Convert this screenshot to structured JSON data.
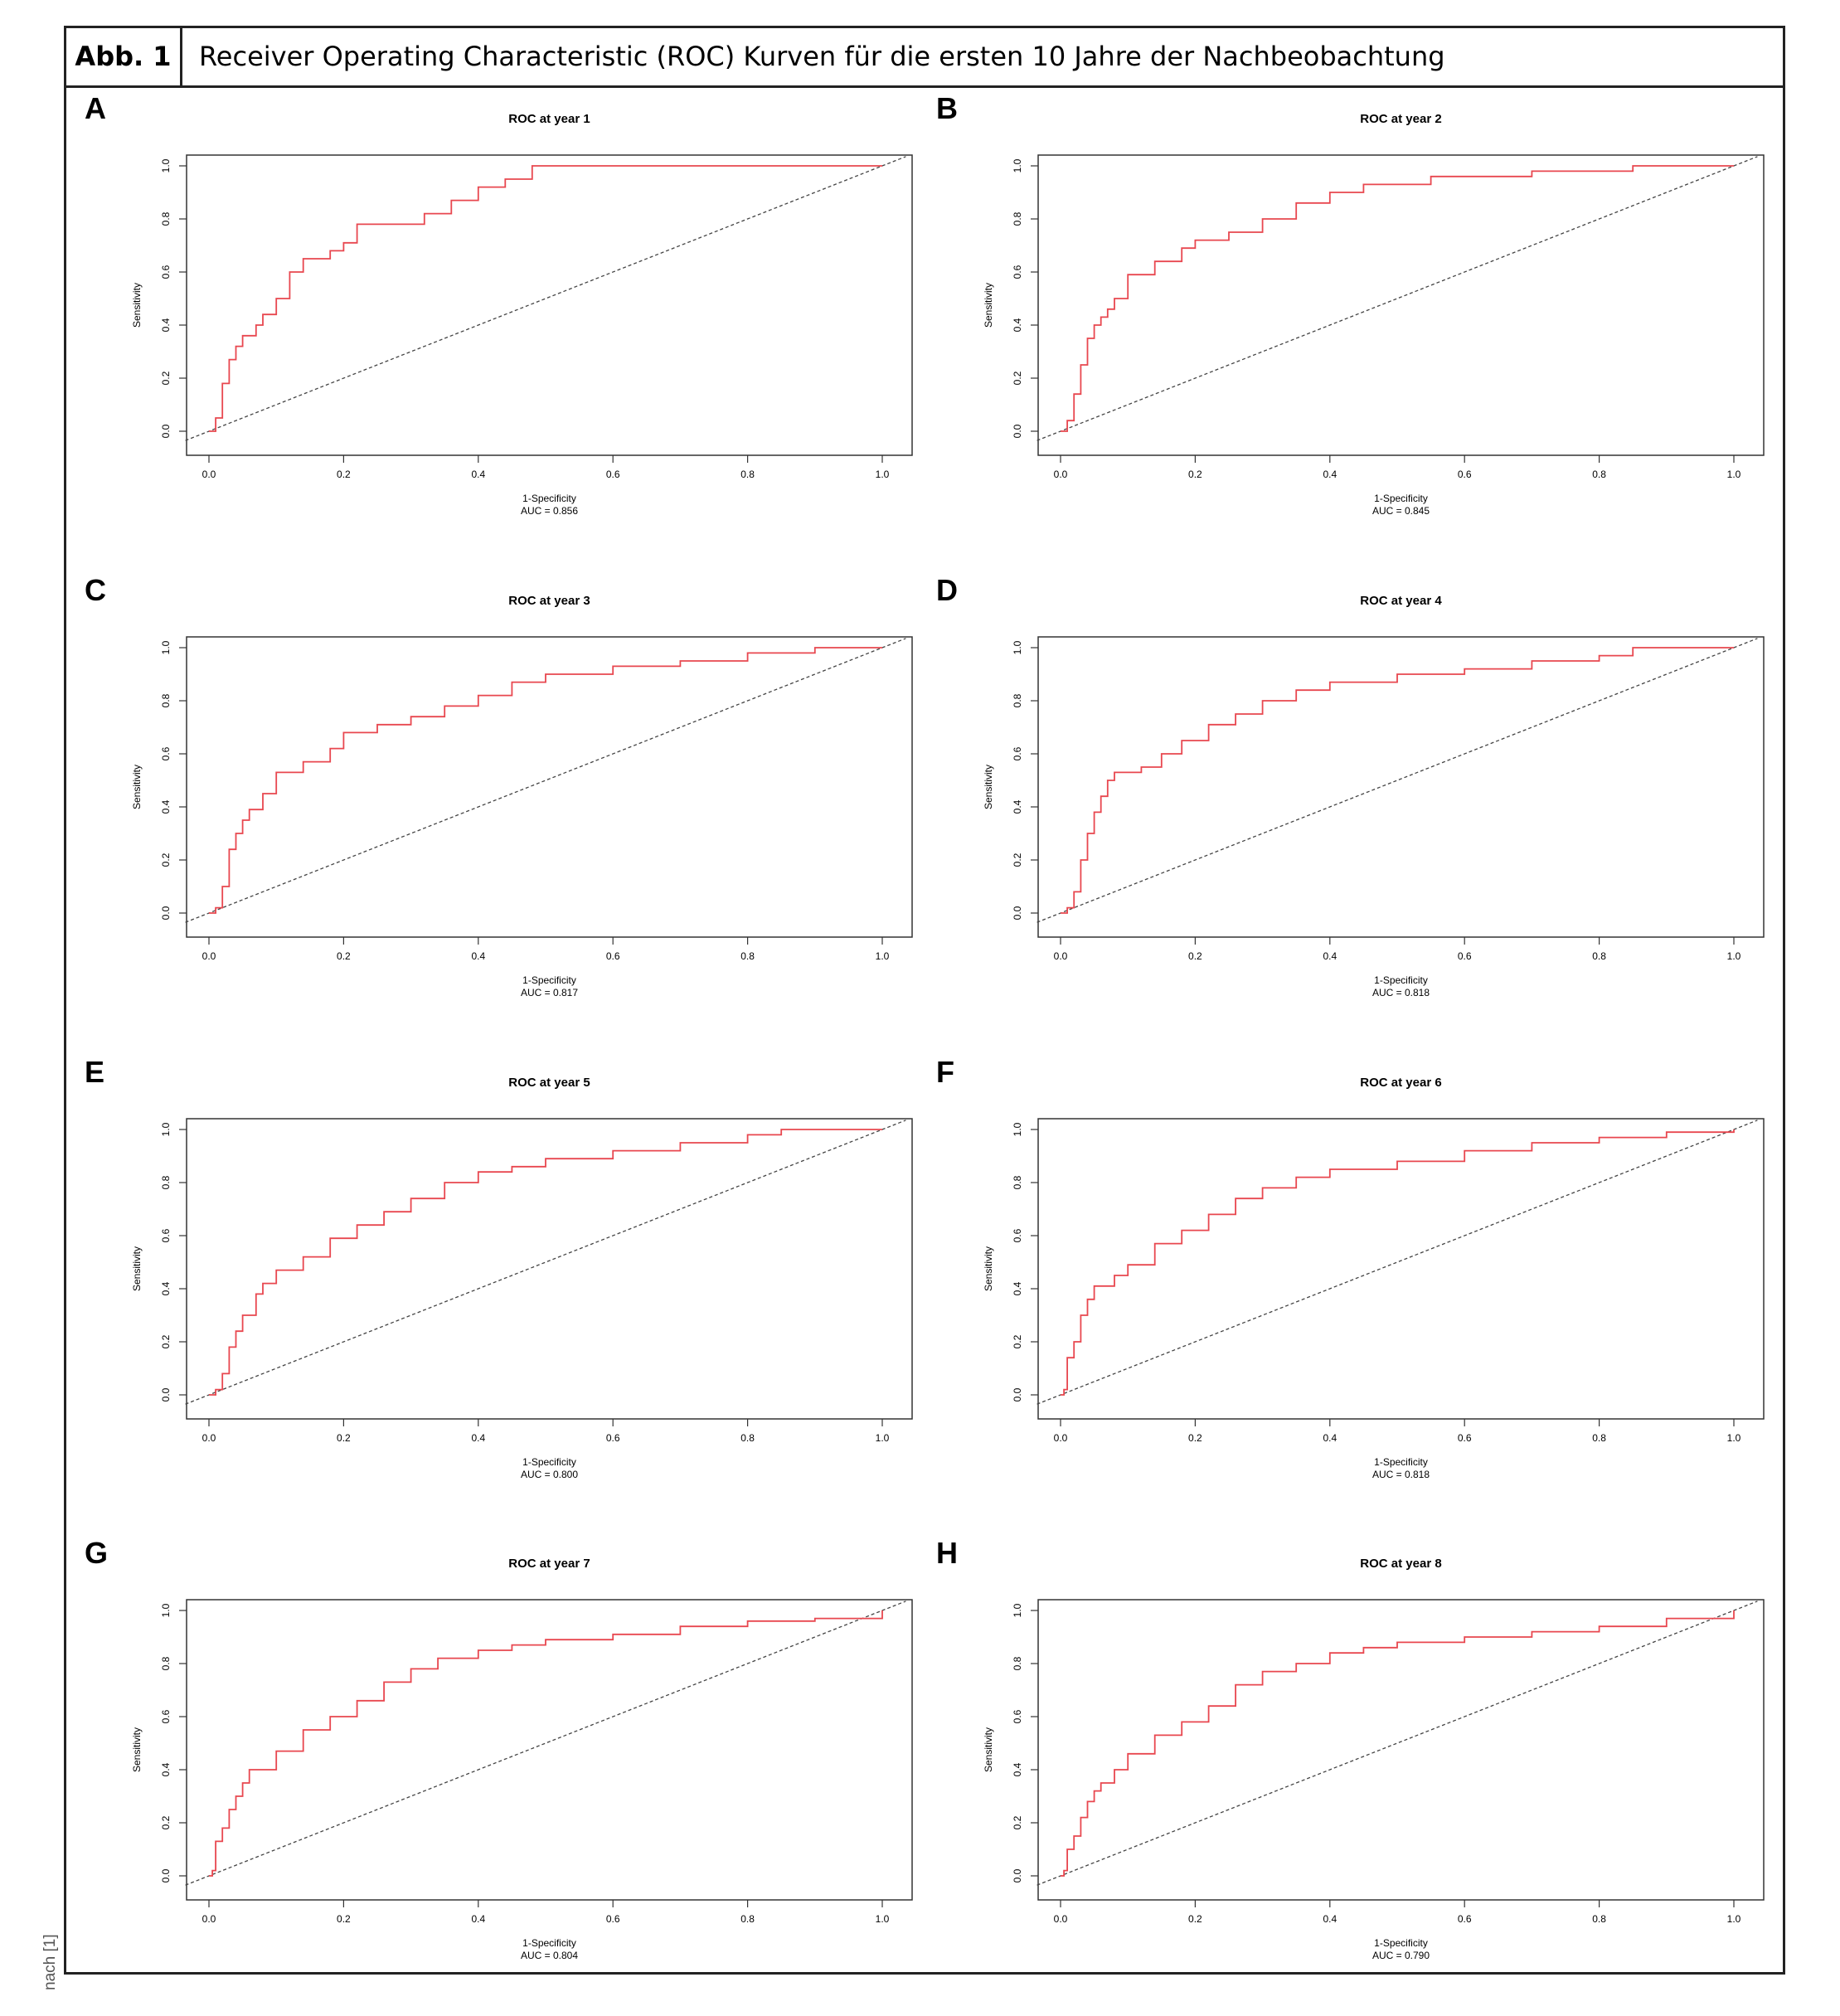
{
  "header": {
    "label": "Abb. 1",
    "title": "Receiver Operating Characteristic (ROC) Kurven für die ersten 10 Jahre der Nachbeobachtung"
  },
  "source_note": "nach [1]",
  "colors": {
    "roc_curve": "#e8474f",
    "diagonal": "#444444",
    "frame": "#333333"
  },
  "chart_data": [
    {
      "panel": "A",
      "type": "line",
      "title": "ROC at year 1",
      "xlabel": "1-Specificity",
      "ylabel": "Sensitivity",
      "auc_label": "AUC = 0.856",
      "xlim": [
        0,
        1
      ],
      "ylim": [
        0,
        1
      ],
      "xticks": [
        "0.0",
        "0.2",
        "0.4",
        "0.6",
        "0.8",
        "1.0"
      ],
      "yticks": [
        "0.0",
        "0.2",
        "0.4",
        "0.6",
        "0.8",
        "1.0"
      ],
      "series": [
        {
          "name": "ROC",
          "x": [
            0,
            0.005,
            0.01,
            0.02,
            0.03,
            0.04,
            0.05,
            0.07,
            0.08,
            0.1,
            0.12,
            0.14,
            0.18,
            0.2,
            0.22,
            0.28,
            0.32,
            0.36,
            0.4,
            0.44,
            0.48,
            0.6,
            0.8,
            1.0
          ],
          "y": [
            0,
            0,
            0.05,
            0.18,
            0.27,
            0.32,
            0.36,
            0.4,
            0.44,
            0.5,
            0.6,
            0.65,
            0.68,
            0.71,
            0.78,
            0.78,
            0.82,
            0.87,
            0.92,
            0.95,
            1.0,
            1.0,
            1.0,
            1.0
          ]
        },
        {
          "name": "Reference",
          "x": [
            0,
            1
          ],
          "y": [
            0,
            1
          ]
        }
      ]
    },
    {
      "panel": "B",
      "type": "line",
      "title": "ROC at year 2",
      "xlabel": "1-Specificity",
      "ylabel": "Sensitivity",
      "auc_label": "AUC = 0.845",
      "xlim": [
        0,
        1
      ],
      "ylim": [
        0,
        1
      ],
      "xticks": [
        "0.0",
        "0.2",
        "0.4",
        "0.6",
        "0.8",
        "1.0"
      ],
      "yticks": [
        "0.0",
        "0.2",
        "0.4",
        "0.6",
        "0.8",
        "1.0"
      ],
      "series": [
        {
          "name": "ROC",
          "x": [
            0,
            0.005,
            0.01,
            0.02,
            0.03,
            0.04,
            0.05,
            0.06,
            0.07,
            0.08,
            0.1,
            0.14,
            0.18,
            0.2,
            0.25,
            0.3,
            0.35,
            0.4,
            0.45,
            0.55,
            0.7,
            0.85,
            1.0
          ],
          "y": [
            0,
            0,
            0.04,
            0.14,
            0.25,
            0.35,
            0.4,
            0.43,
            0.46,
            0.5,
            0.59,
            0.64,
            0.69,
            0.72,
            0.75,
            0.8,
            0.86,
            0.9,
            0.93,
            0.96,
            0.98,
            1.0,
            1.0
          ]
        },
        {
          "name": "Reference",
          "x": [
            0,
            1
          ],
          "y": [
            0,
            1
          ]
        }
      ]
    },
    {
      "panel": "C",
      "type": "line",
      "title": "ROC at year 3",
      "xlabel": "1-Specificity",
      "ylabel": "Sensitivity",
      "auc_label": "AUC = 0.817",
      "xlim": [
        0,
        1
      ],
      "ylim": [
        0,
        1
      ],
      "xticks": [
        "0.0",
        "0.2",
        "0.4",
        "0.6",
        "0.8",
        "1.0"
      ],
      "yticks": [
        "0.0",
        "0.2",
        "0.4",
        "0.6",
        "0.8",
        "1.0"
      ],
      "series": [
        {
          "name": "ROC",
          "x": [
            0,
            0.01,
            0.02,
            0.03,
            0.04,
            0.05,
            0.06,
            0.08,
            0.1,
            0.14,
            0.18,
            0.2,
            0.25,
            0.3,
            0.35,
            0.4,
            0.45,
            0.5,
            0.6,
            0.7,
            0.8,
            0.9,
            1.0
          ],
          "y": [
            0,
            0.02,
            0.1,
            0.24,
            0.3,
            0.35,
            0.39,
            0.45,
            0.53,
            0.57,
            0.62,
            0.68,
            0.71,
            0.74,
            0.78,
            0.82,
            0.87,
            0.9,
            0.93,
            0.95,
            0.98,
            1.0,
            1.0
          ]
        },
        {
          "name": "Reference",
          "x": [
            0,
            1
          ],
          "y": [
            0,
            1
          ]
        }
      ]
    },
    {
      "panel": "D",
      "type": "line",
      "title": "ROC at year 4",
      "xlabel": "1-Specificity",
      "ylabel": "Sensitivity",
      "auc_label": "AUC = 0.818",
      "xlim": [
        0,
        1
      ],
      "ylim": [
        0,
        1
      ],
      "xticks": [
        "0.0",
        "0.2",
        "0.4",
        "0.6",
        "0.8",
        "1.0"
      ],
      "yticks": [
        "0.0",
        "0.2",
        "0.4",
        "0.6",
        "0.8",
        "1.0"
      ],
      "series": [
        {
          "name": "ROC",
          "x": [
            0,
            0.01,
            0.02,
            0.03,
            0.04,
            0.05,
            0.06,
            0.07,
            0.08,
            0.12,
            0.15,
            0.18,
            0.22,
            0.26,
            0.3,
            0.35,
            0.4,
            0.5,
            0.6,
            0.7,
            0.8,
            0.85,
            1.0
          ],
          "y": [
            0,
            0.02,
            0.08,
            0.2,
            0.3,
            0.38,
            0.44,
            0.5,
            0.53,
            0.55,
            0.6,
            0.65,
            0.71,
            0.75,
            0.8,
            0.84,
            0.87,
            0.9,
            0.92,
            0.95,
            0.97,
            1.0,
            1.0
          ]
        },
        {
          "name": "Reference",
          "x": [
            0,
            1
          ],
          "y": [
            0,
            1
          ]
        }
      ]
    },
    {
      "panel": "E",
      "type": "line",
      "title": "ROC at year 5",
      "xlabel": "1-Specificity",
      "ylabel": "Sensitivity",
      "auc_label": "AUC = 0.800",
      "xlim": [
        0,
        1
      ],
      "ylim": [
        0,
        1
      ],
      "xticks": [
        "0.0",
        "0.2",
        "0.4",
        "0.6",
        "0.8",
        "1.0"
      ],
      "yticks": [
        "0.0",
        "0.2",
        "0.4",
        "0.6",
        "0.8",
        "1.0"
      ],
      "series": [
        {
          "name": "ROC",
          "x": [
            0,
            0.01,
            0.02,
            0.03,
            0.04,
            0.05,
            0.07,
            0.08,
            0.1,
            0.14,
            0.18,
            0.22,
            0.26,
            0.3,
            0.35,
            0.4,
            0.45,
            0.5,
            0.6,
            0.7,
            0.8,
            0.85,
            1.0
          ],
          "y": [
            0,
            0.02,
            0.08,
            0.18,
            0.24,
            0.3,
            0.38,
            0.42,
            0.47,
            0.52,
            0.59,
            0.64,
            0.69,
            0.74,
            0.8,
            0.84,
            0.86,
            0.89,
            0.92,
            0.95,
            0.98,
            1.0,
            1.0
          ]
        },
        {
          "name": "Reference",
          "x": [
            0,
            1
          ],
          "y": [
            0,
            1
          ]
        }
      ]
    },
    {
      "panel": "F",
      "type": "line",
      "title": "ROC at year 6",
      "xlabel": "1-Specificity",
      "ylabel": "Sensitivity",
      "auc_label": "AUC = 0.818",
      "xlim": [
        0,
        1
      ],
      "ylim": [
        0,
        1
      ],
      "xticks": [
        "0.0",
        "0.2",
        "0.4",
        "0.6",
        "0.8",
        "1.0"
      ],
      "yticks": [
        "0.0",
        "0.2",
        "0.4",
        "0.6",
        "0.8",
        "1.0"
      ],
      "series": [
        {
          "name": "ROC",
          "x": [
            0,
            0.005,
            0.01,
            0.02,
            0.03,
            0.04,
            0.05,
            0.08,
            0.1,
            0.14,
            0.18,
            0.22,
            0.26,
            0.3,
            0.35,
            0.4,
            0.5,
            0.6,
            0.7,
            0.8,
            0.9,
            1.0
          ],
          "y": [
            0,
            0.02,
            0.14,
            0.2,
            0.3,
            0.36,
            0.41,
            0.45,
            0.49,
            0.57,
            0.62,
            0.68,
            0.74,
            0.78,
            0.82,
            0.85,
            0.88,
            0.92,
            0.95,
            0.97,
            0.99,
            1.0
          ]
        },
        {
          "name": "Reference",
          "x": [
            0,
            1
          ],
          "y": [
            0,
            1
          ]
        }
      ]
    },
    {
      "panel": "G",
      "type": "line",
      "title": "ROC at year 7",
      "xlabel": "1-Specificity",
      "ylabel": "Sensitivity",
      "auc_label": "AUC = 0.804",
      "xlim": [
        0,
        1
      ],
      "ylim": [
        0,
        1
      ],
      "xticks": [
        "0.0",
        "0.2",
        "0.4",
        "0.6",
        "0.8",
        "1.0"
      ],
      "yticks": [
        "0.0",
        "0.2",
        "0.4",
        "0.6",
        "0.8",
        "1.0"
      ],
      "series": [
        {
          "name": "ROC",
          "x": [
            0,
            0.005,
            0.01,
            0.02,
            0.03,
            0.04,
            0.05,
            0.06,
            0.1,
            0.14,
            0.18,
            0.22,
            0.26,
            0.3,
            0.34,
            0.4,
            0.45,
            0.5,
            0.6,
            0.7,
            0.8,
            0.9,
            1.0
          ],
          "y": [
            0,
            0.02,
            0.13,
            0.18,
            0.25,
            0.3,
            0.35,
            0.4,
            0.47,
            0.55,
            0.6,
            0.66,
            0.73,
            0.78,
            0.82,
            0.85,
            0.87,
            0.89,
            0.91,
            0.94,
            0.96,
            0.97,
            1.0
          ]
        },
        {
          "name": "Reference",
          "x": [
            0,
            1
          ],
          "y": [
            0,
            1
          ]
        }
      ]
    },
    {
      "panel": "H",
      "type": "line",
      "title": "ROC at year 8",
      "xlabel": "1-Specificity",
      "ylabel": "Sensitivity",
      "auc_label": "AUC = 0.790",
      "xlim": [
        0,
        1
      ],
      "ylim": [
        0,
        1
      ],
      "xticks": [
        "0.0",
        "0.2",
        "0.4",
        "0.6",
        "0.8",
        "1.0"
      ],
      "yticks": [
        "0.0",
        "0.2",
        "0.4",
        "0.6",
        "0.8",
        "1.0"
      ],
      "series": [
        {
          "name": "ROC",
          "x": [
            0,
            0.005,
            0.01,
            0.02,
            0.03,
            0.04,
            0.05,
            0.06,
            0.08,
            0.1,
            0.14,
            0.18,
            0.22,
            0.26,
            0.3,
            0.35,
            0.4,
            0.45,
            0.5,
            0.6,
            0.7,
            0.8,
            0.9,
            1.0
          ],
          "y": [
            0,
            0.02,
            0.1,
            0.15,
            0.22,
            0.28,
            0.32,
            0.35,
            0.4,
            0.46,
            0.53,
            0.58,
            0.64,
            0.72,
            0.77,
            0.8,
            0.84,
            0.86,
            0.88,
            0.9,
            0.92,
            0.94,
            0.97,
            1.0
          ]
        },
        {
          "name": "Reference",
          "x": [
            0,
            1
          ],
          "y": [
            0,
            1
          ]
        }
      ]
    }
  ]
}
